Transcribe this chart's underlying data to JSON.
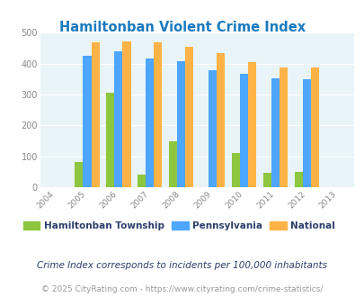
{
  "title": "Hamiltonban Violent Crime Index",
  "years": [
    2005,
    2006,
    2007,
    2008,
    2009,
    2010,
    2011,
    2012
  ],
  "hamiltonban": [
    80,
    307,
    40,
    148,
    0,
    110,
    47,
    48
  ],
  "pennsylvania": [
    425,
    441,
    416,
    408,
    379,
    366,
    353,
    348
  ],
  "national": [
    470,
    473,
    468,
    455,
    433,
    405,
    387,
    387
  ],
  "bar_width": 0.26,
  "colors": {
    "hamiltonban": "#8dc63f",
    "pennsylvania": "#4da6ff",
    "national": "#ffb347"
  },
  "legend_labels": [
    "Hamiltonban Township",
    "Pennsylvania",
    "National"
  ],
  "xlim": [
    2003.5,
    2013.5
  ],
  "ylim": [
    0,
    500
  ],
  "yticks": [
    0,
    100,
    200,
    300,
    400,
    500
  ],
  "xticks": [
    2004,
    2005,
    2006,
    2007,
    2008,
    2009,
    2010,
    2011,
    2012,
    2013
  ],
  "bg_color": "#e8f4f8",
  "fig_bg_color": "#ffffff",
  "title_color": "#1a7abf",
  "footnote1": "Crime Index corresponds to incidents per 100,000 inhabitants",
  "footnote2": "© 2025 CityRating.com - https://www.cityrating.com/crime-statistics/",
  "footnote1_color": "#2c3e6b",
  "footnote2_color": "#999999",
  "legend_text_color": "#2c3e6b"
}
